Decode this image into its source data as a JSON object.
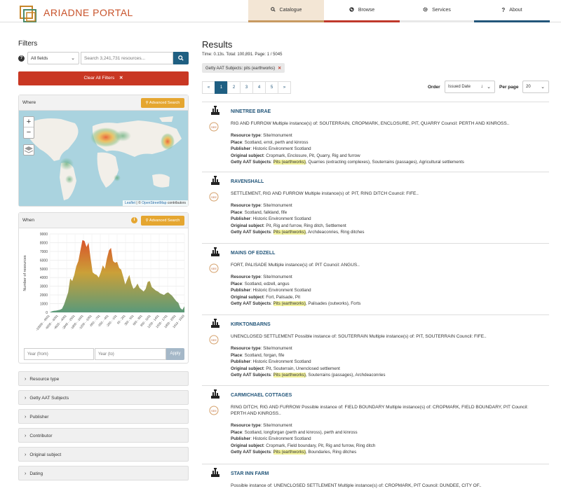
{
  "header": {
    "logo_text": "ARIADNE PORTAL",
    "nav": [
      {
        "label": "Catalogue",
        "icon": "search-icon"
      },
      {
        "label": "Browse",
        "icon": "globe-icon"
      },
      {
        "label": "Services",
        "icon": "gear-icon"
      },
      {
        "label": "About",
        "icon": "question-icon"
      }
    ]
  },
  "filters": {
    "title": "Filters",
    "field_select": "All fields",
    "search_placeholder": "Search 3,241,731 resources...",
    "clear_label": "Clear All Filters",
    "where": {
      "title": "Where",
      "advanced_label": "Advanced Search",
      "attribution_leaflet": "Leaflet",
      "attribution_sep": " | © ",
      "attribution_osm": "OpenStreetMap",
      "attribution_tail": " contributors"
    },
    "when": {
      "title": "When",
      "advanced_label": "Advanced Search",
      "year_from_placeholder": "Year (from)",
      "year_to_placeholder": "Year (to)",
      "apply_label": "Apply"
    },
    "facets": [
      "Resource type",
      "Getty AAT Subjects",
      "Publisher",
      "Contributor",
      "Original subject",
      "Dating"
    ]
  },
  "chart_data": {
    "type": "area",
    "ylabel": "Number of resources",
    "ylim": [
      0,
      9000
    ],
    "yticks": [
      0,
      1000,
      2000,
      3000,
      4000,
      5000,
      6000,
      7000,
      8000,
      9000
    ],
    "xtick_labels": [
      "-10000 - -9501",
      "-6500 - -6001",
      "-4625 - -4001",
      "-2845 - -2501",
      "-1800 - -1601",
      "-1200 - -1001",
      "-850 - -701",
      "-550 - -401",
      "-250 - -101",
      "50 - 201",
      "350 - 501",
      "650 - 801",
      "950 - 1101",
      "1250 - 1401",
      "1550 - 1701",
      "1850 - 2001",
      "1914 - 1918"
    ],
    "xtick_display": [
      "-10000 - -9501",
      "-6500 - -6001",
      "-4625 - -4001",
      "-2845 - -2501",
      "-1800 - -1601",
      "-1200 - -1001",
      "-850 - -701",
      "-550 - -401",
      "-250 - -101",
      "50 - 201",
      "350 - 501",
      "650 - 801",
      "950 - 1101",
      "1250 - 1401",
      "1550 - 1701",
      "1850 - 2001",
      "1914 - 1918"
    ],
    "values": [
      0,
      120,
      180,
      200,
      250,
      300,
      420,
      900,
      1600,
      2300,
      3900,
      3600,
      4300,
      5300,
      5900,
      7100,
      8300,
      8200,
      7500,
      8000,
      6200,
      4600,
      4400,
      4300,
      4000,
      4600,
      5400,
      5000,
      6200,
      7100,
      7400,
      5900,
      5700,
      5800,
      5100,
      4900,
      4100,
      3200,
      3800,
      4300,
      3300,
      2700,
      2900,
      3300,
      2800,
      2600,
      2400,
      2700,
      3500,
      3600,
      2900,
      2700,
      2500,
      2400,
      2200,
      2100,
      2000,
      2200,
      2300,
      2100,
      1900,
      1600,
      1300,
      1100,
      500,
      300,
      700
    ]
  },
  "results": {
    "title": "Results",
    "meta": "Time: 0.13s. Total: 100,891. Page: 1 / 5045",
    "chip": "Getty AAT Subjects: pits (earthworks)",
    "pager": [
      "«",
      "1",
      "2",
      "3",
      "4",
      "5",
      "»"
    ],
    "order_label": "Order",
    "order_value": "Issued Date",
    "perpage_label": "Per page",
    "perpage_value": "20",
    "items": [
      {
        "title": "NINETREE BRAE",
        "desc": "RIG AND FURROW Multiple instance(s) of: SOUTERRAIN, CROPMARK, ENCLOSURE, PIT, QUARRY Council: PERTH AND KINROSS..",
        "resource_type": "Site/monument",
        "place": "Scotland, errol, perth and kinross",
        "publisher": "Historic Environment Scotland",
        "original_subject": "Cropmark, Enclosure, Pit, Quarry, Rig and furrow",
        "aat_hl": "Pits (earthworks)",
        "aat_rest": ", Quarries (extracting complexes), Souterrains (passages), Agricultural settlements"
      },
      {
        "title": "RAVENSHALL",
        "desc": "SETTLEMENT, RIG AND FURROW Multiple instance(s) of: PIT, RING DITCH Council: FIFE..",
        "resource_type": "Site/monument",
        "place": "Scotland, falkland, fife",
        "publisher": "Historic Environment Scotland",
        "original_subject": "Pit, Rig and furrow, Ring ditch, Settlement",
        "aat_hl": "Pits (earthworks)",
        "aat_rest": ", Archdeaconries, Ring ditches"
      },
      {
        "title": "MAINS OF EDZELL",
        "desc": "FORT, PALISADE Multiple instance(s) of: PIT Council: ANGUS..",
        "resource_type": "Site/monument",
        "place": "Scotland, edzell, angus",
        "publisher": "Historic Environment Scotland",
        "original_subject": "Fort, Palisade, Pit",
        "aat_hl": "Pits (earthworks)",
        "aat_rest": ", Palisades (outworks), Forts"
      },
      {
        "title": "KIRKTONBARNS",
        "desc": "UNENCLOSED SETTLEMENT Possible instance of: SOUTERRAIN Multiple instance(s) of: PIT, SOUTERRAIN Council: FIFE..",
        "resource_type": "Site/monument",
        "place": "Scotland, forgan, fife",
        "publisher": "Historic Environment Scotland",
        "original_subject": "Pit, Souterrain, Unenclosed settlement",
        "aat_hl": "Pits (earthworks)",
        "aat_rest": ", Souterrains (passages), Archdeaconries"
      },
      {
        "title": "CARMICHAEL COTTAGES",
        "desc": "RING DITCH, RIG AND FURROW Possible instance of: FIELD BOUNDARY Multiple instance(s) of: CROPMARK, FIELD BOUNDARY, PIT Council: PERTH AND KINROSS..",
        "resource_type": "Site/monument",
        "place": "Scotland, longforgan (perth and kinross), perth and kinross",
        "publisher": "Historic Environment Scotland",
        "original_subject": "Cropmark, Field boundary, Pit, Rig and furrow, Ring ditch",
        "aat_hl": "Pits (earthworks)",
        "aat_rest": ", Boundaries, Ring ditches"
      },
      {
        "title": "STAR INN FARM",
        "desc": "Possible instance of: UNENCLOSED SETTLEMENT Multiple instance(s) of: CROPMARK, PIT Council: DUNDEE, CITY OF.."
      }
    ],
    "row_labels": {
      "resource_type": "Resource type",
      "place": "Place",
      "publisher": "Publisher",
      "original_subject": "Original subject",
      "aat": "Getty AAT Subjects"
    }
  }
}
